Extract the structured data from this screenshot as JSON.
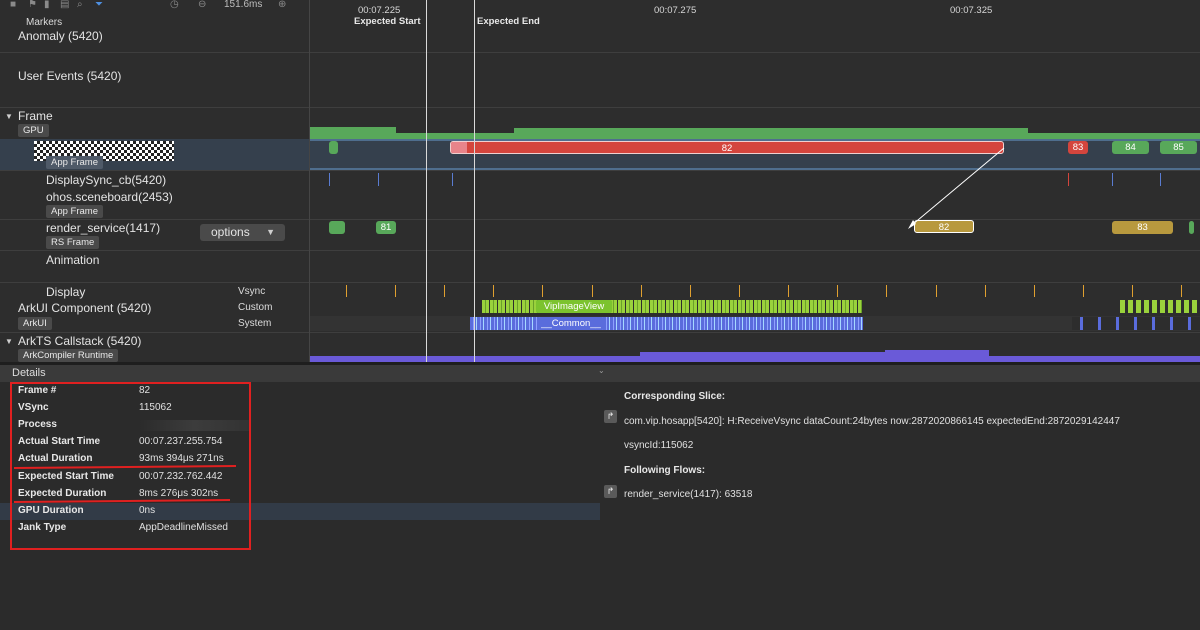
{
  "toolbar": {
    "zoom": "151.6ms"
  },
  "time_ruler": {
    "ticks": [
      "00:07.225",
      "00:07.275",
      "00:07.325"
    ],
    "marker_start": "Expected Start",
    "marker_end": "Expected End"
  },
  "tracks": {
    "markers": "Markers",
    "anomaly": "Anomaly (5420)",
    "user_events": "User Events (5420)",
    "frame": "Frame",
    "gpu_tag": "GPU",
    "app_frame_tag": "App Frame",
    "display_sync": "DisplaySync_cb(5420)",
    "sceneboard": "ohos.sceneboard(2453)",
    "sceneboard_tag": "App Frame",
    "render_service": "render_service(1417)",
    "rs_frame_tag": "RS Frame",
    "options": "options",
    "animation": "Animation",
    "display": "Display",
    "vsync": "Vsync",
    "arkui_component": "ArkUI Component (5420)",
    "custom": "Custom",
    "arkui_tag": "ArkUI",
    "system": "System",
    "arkts_callstack": "ArkTS Callstack (5420)",
    "arkcompiler_tag": "ArkCompiler Runtime"
  },
  "slices": {
    "app_frames": [
      "82",
      "83",
      "84",
      "85"
    ],
    "rs_frames": [
      "81",
      "82",
      "83"
    ],
    "custom_label": "VipImageView",
    "system_label": "__Common__"
  },
  "details": {
    "title": "Details",
    "rows": [
      {
        "key": "Frame #",
        "value": "82"
      },
      {
        "key": "VSync",
        "value": "115062"
      },
      {
        "key": "Process",
        "value": ""
      },
      {
        "key": "Actual Start Time",
        "value": "00:07.237.255.754"
      },
      {
        "key": "Actual Duration",
        "value": "93ms 394μs 271ns"
      },
      {
        "key": "Expected Start Time",
        "value": "00:07.232.762.442"
      },
      {
        "key": "Expected Duration",
        "value": "8ms 276μs 302ns"
      },
      {
        "key": "GPU Duration",
        "value": "0ns"
      },
      {
        "key": "Jank Type",
        "value": "AppDeadlineMissed"
      }
    ],
    "corresponding_title": "Corresponding Slice:",
    "corresponding_text": "com.vip.hosapp[5420]: H:ReceiveVsync dataCount:24bytes now:2872020866145 expectedEnd:2872029142447",
    "vsync_id": "vsyncId:115062",
    "following_title": "Following Flows:",
    "following_text": "render_service(1417): 63518"
  },
  "colors": {
    "frame_green": "#58a85a",
    "jank_red": "#d4453d",
    "rs_gold": "#b8993e",
    "vsync_orange": "#e0a030",
    "arkui_green": "#9ad23c",
    "system_blue": "#5a6cdc",
    "highlight_red": "#e02020"
  }
}
